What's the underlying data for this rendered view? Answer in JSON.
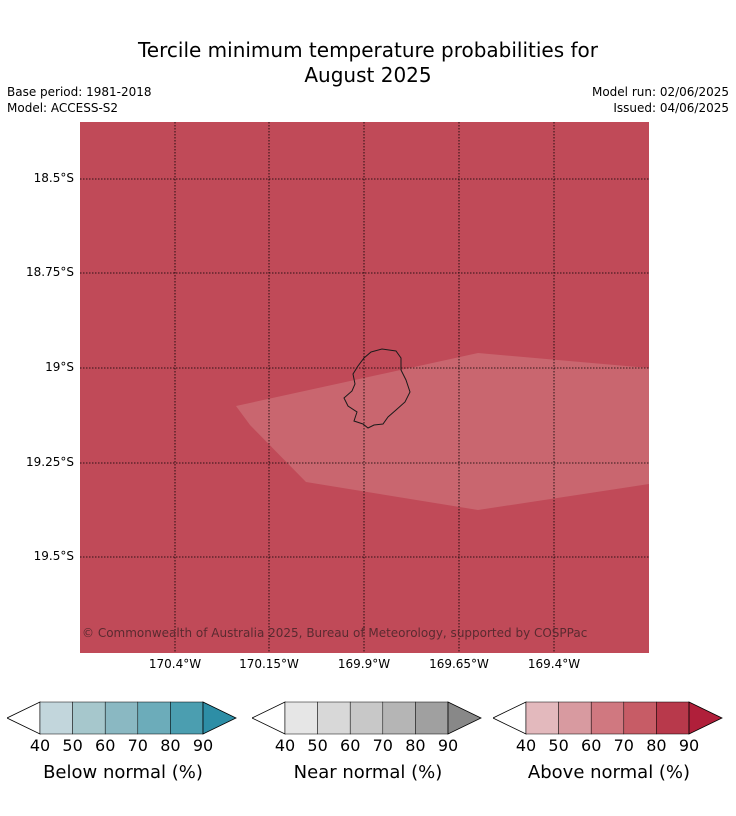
{
  "title_line1": "Tercile minimum temperature probabilities for",
  "title_line2": "August 2025",
  "base_period": "Base period: 1981-2018",
  "model": "Model: ACCESS-S2",
  "model_run": "Model run: 02/06/2025",
  "issued": "Issued: 04/06/2025",
  "copyright": "© Commonwealth of Australia 2025, Bureau of Meteorology, supported by COSPPac",
  "lat_labels": [
    "18.5°S",
    "18.75°S",
    "19°S",
    "19.25°S",
    "19.5°S"
  ],
  "lon_labels": [
    "170.4°W",
    "170.15°W",
    "169.9°W",
    "169.65°W",
    "169.4°W"
  ],
  "colors": {
    "above_70": "#c04a58",
    "above_60": "#c9666f",
    "coastline": "#1a1a1a",
    "gridline": "#000000"
  },
  "colorbars": [
    {
      "label": "Below normal (%)",
      "ticks": [
        "40",
        "50",
        "60",
        "70",
        "80",
        "90"
      ],
      "colors": [
        "#c2d6dc",
        "#a6c7cc",
        "#8ab8c2",
        "#6cacba",
        "#4b9eb0",
        "#2d8ea6"
      ]
    },
    {
      "label": "Near normal (%)",
      "ticks": [
        "40",
        "50",
        "60",
        "70",
        "80",
        "90"
      ],
      "colors": [
        "#e6e6e6",
        "#d8d8d8",
        "#c8c8c8",
        "#b5b5b5",
        "#a0a0a0",
        "#888888"
      ]
    },
    {
      "label": "Above normal (%)",
      "ticks": [
        "40",
        "50",
        "60",
        "70",
        "80",
        "90"
      ],
      "colors": [
        "#e3b9bd",
        "#d89aa0",
        "#d07880",
        "#c75c66",
        "#b8394b",
        "#b01f3a"
      ]
    }
  ]
}
